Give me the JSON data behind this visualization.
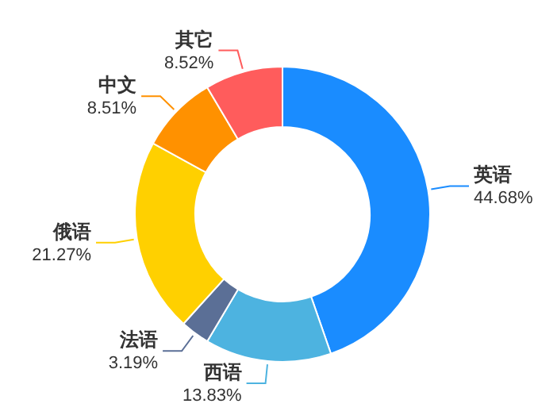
{
  "chart_data": {
    "type": "donut",
    "categories": [
      "英语",
      "西语",
      "法语",
      "俄语",
      "中文",
      "其它"
    ],
    "values": [
      44.68,
      13.83,
      3.19,
      21.27,
      8.51,
      8.52
    ],
    "colors": [
      "#1a8cff",
      "#4db3e0",
      "#5b6f96",
      "#ffd000",
      "#ff9100",
      "#ff5c5c"
    ],
    "value_labels": [
      "44.68%",
      "13.83%",
      "3.19%",
      "21.27%",
      "8.51%",
      "8.52%"
    ]
  }
}
